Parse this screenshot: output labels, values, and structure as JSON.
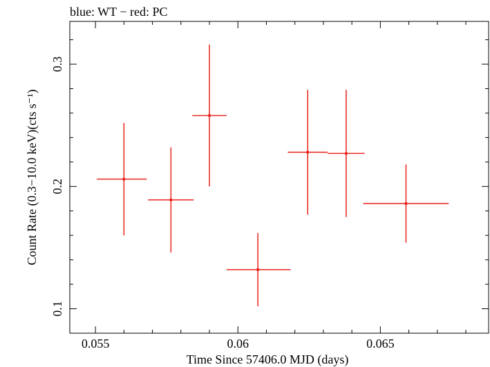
{
  "chart_data": {
    "type": "scatter",
    "title": "blue: WT − red: PC",
    "xlabel": "Time Since 57406.0 MJD (days)",
    "ylabel": "Count Rate (0.3−10.0 keV)(cts s⁻¹)",
    "xlim": [
      0.0541,
      0.0688
    ],
    "ylim": [
      0.08,
      0.335
    ],
    "x_ticks": [
      {
        "value": 0.055,
        "label": "0.055"
      },
      {
        "value": 0.06,
        "label": "0.06"
      },
      {
        "value": 0.065,
        "label": "0.065"
      }
    ],
    "y_ticks": [
      {
        "value": 0.1,
        "label": "0.1"
      },
      {
        "value": 0.2,
        "label": "0.2"
      },
      {
        "value": 0.3,
        "label": "0.3"
      }
    ],
    "grid": false,
    "legend": "none",
    "series": [
      {
        "name": "PC",
        "color": "#e8221b",
        "points": [
          {
            "x": 0.056,
            "y": 0.206,
            "xerr_lo": 0.00095,
            "xerr_hi": 0.0008,
            "yerr_lo": 0.046,
            "yerr_hi": 0.046
          },
          {
            "x": 0.05765,
            "y": 0.189,
            "xerr_lo": 0.0008,
            "xerr_hi": 0.0008,
            "yerr_lo": 0.043,
            "yerr_hi": 0.043
          },
          {
            "x": 0.059,
            "y": 0.258,
            "xerr_lo": 0.0006,
            "xerr_hi": 0.0006,
            "yerr_lo": 0.058,
            "yerr_hi": 0.058
          },
          {
            "x": 0.0607,
            "y": 0.132,
            "xerr_lo": 0.0011,
            "xerr_hi": 0.00115,
            "yerr_lo": 0.03,
            "yerr_hi": 0.03
          },
          {
            "x": 0.06245,
            "y": 0.228,
            "xerr_lo": 0.0007,
            "xerr_hi": 0.0007,
            "yerr_lo": 0.051,
            "yerr_hi": 0.051
          },
          {
            "x": 0.0638,
            "y": 0.227,
            "xerr_lo": 0.00065,
            "xerr_hi": 0.00065,
            "yerr_lo": 0.052,
            "yerr_hi": 0.052
          },
          {
            "x": 0.0659,
            "y": 0.186,
            "xerr_lo": 0.0015,
            "xerr_hi": 0.0015,
            "yerr_lo": 0.032,
            "yerr_hi": 0.032
          }
        ]
      }
    ]
  }
}
